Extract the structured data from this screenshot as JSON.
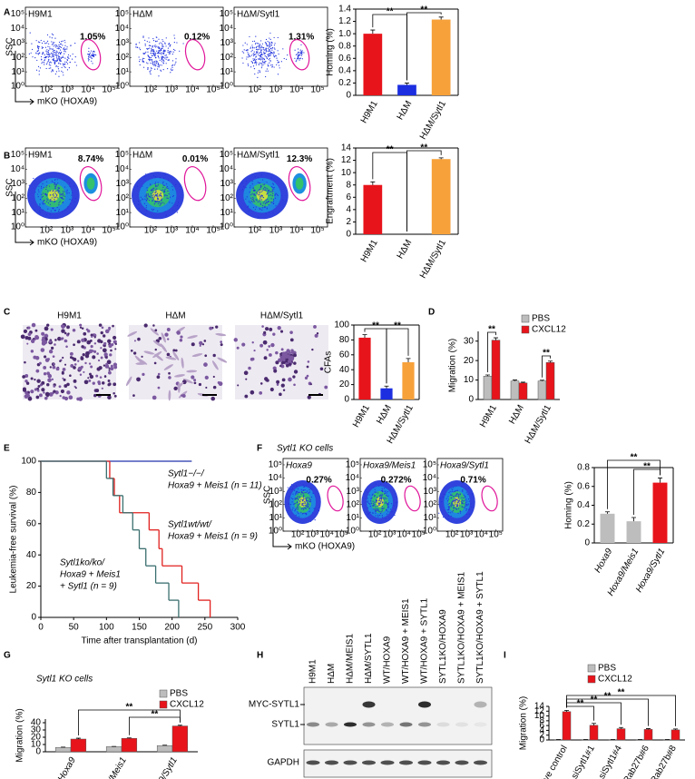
{
  "chart_data": [
    {
      "type": "flow",
      "panel": "A",
      "y_label": "SSC",
      "x_label": "mKO (HOXA9)",
      "samples": [
        "H9M1",
        "HΔM",
        "HΔM/Sytl1"
      ],
      "values": [
        1.05,
        0.12,
        1.31
      ],
      "value_labels": [
        "1.05%",
        "0.12%",
        "1.31%"
      ],
      "log_scale": true,
      "xlim": [
        10,
        300000
      ],
      "xticks": [
        {
          "value": 100,
          "label": "10²"
        },
        {
          "value": 1000,
          "label": "10³"
        },
        {
          "value": 10000,
          "label": "10⁴"
        },
        {
          "value": 100000,
          "label": "10⁵"
        }
      ],
      "ylim": [
        1,
        300000
      ],
      "yticks": [
        {
          "value": 1,
          "label": "10⁰"
        },
        {
          "value": 10,
          "label": "10¹"
        },
        {
          "value": 100,
          "label": "10²"
        },
        {
          "value": 1000,
          "label": "10³"
        },
        {
          "value": 10000,
          "label": "10⁴"
        },
        {
          "value": 100000,
          "label": "10⁵"
        }
      ],
      "color": "#2233dd",
      "gate_color": "#e0159a"
    },
    {
      "type": "bar",
      "y_label": "Homing (%)",
      "categories": [
        "H9M1",
        "HΔM",
        "HΔM/Sytl1"
      ],
      "values": [
        1.0,
        0.17,
        1.23
      ],
      "errors": [
        0.06,
        0.03,
        0.04
      ],
      "colors": [
        "#e8141b",
        "#1c2ee0",
        "#f7a13a"
      ],
      "ylim": [
        0,
        1.4
      ],
      "yticks": [
        0,
        0.2,
        0.4,
        0.6,
        0.8,
        {
          "value": 1,
          "label": "1.0"
        },
        1.2,
        1.4
      ],
      "significance": [
        "**",
        "**"
      ]
    },
    {
      "type": "flow",
      "panel": "B",
      "y_label": "SSC",
      "x_label": "mKO (HOXA9)",
      "samples": [
        "H9M1",
        "HΔM",
        "HΔM/Sytl1"
      ],
      "values": [
        8.74,
        0.01,
        12.3
      ],
      "value_labels": [
        "8.74%",
        "0.01%",
        "12.3%"
      ],
      "log_scale": true,
      "xlim": [
        10,
        300000
      ],
      "xticks": [
        {
          "value": 100,
          "label": "10²"
        },
        {
          "value": 1000,
          "label": "10³"
        },
        {
          "value": 10000,
          "label": "10⁴"
        },
        {
          "value": 100000,
          "label": "10⁵"
        }
      ],
      "ylim": [
        1,
        300000
      ],
      "yticks": [
        {
          "value": 1,
          "label": "10⁰"
        },
        {
          "value": 10,
          "label": "10¹"
        },
        {
          "value": 100,
          "label": "10²"
        },
        {
          "value": 1000,
          "label": "10³"
        },
        {
          "value": 10000,
          "label": "10⁴"
        },
        {
          "value": 100000,
          "label": "10⁵"
        }
      ],
      "color": "#2233dd",
      "gate_color": "#e0159a"
    },
    {
      "type": "bar",
      "y_label": "Engraftment (%)",
      "categories": [
        "H9M1",
        "HΔM",
        "HΔM/Sytl1"
      ],
      "values": [
        8.0,
        0,
        12.2
      ],
      "errors": [
        0.5,
        0,
        0.2
      ],
      "colors": [
        "#e8141b",
        "#ffffff",
        "#f7a13a"
      ],
      "ylim": [
        0,
        14
      ],
      "yticks": [
        0,
        2,
        4,
        6,
        8,
        10,
        12,
        14
      ],
      "significance": [
        "**",
        "**"
      ]
    },
    {
      "type": "image",
      "panel": "C",
      "titles": [
        "H9M1",
        "HΔM",
        "HΔM/Sytl1"
      ]
    },
    {
      "type": "bar",
      "y_label": "CFAs",
      "categories": [
        "H9M1",
        "HΔM",
        "HΔM/Sytl1"
      ],
      "values": [
        83,
        15,
        50
      ],
      "errors": [
        4,
        3,
        5
      ],
      "colors": [
        "#e8141b",
        "#1c2ee0",
        "#f7a13a"
      ],
      "ylim": [
        0,
        100
      ],
      "yticks": [
        0,
        20,
        40,
        60,
        80,
        100
      ],
      "significance": [
        "**",
        "**"
      ]
    },
    {
      "type": "bar",
      "panel": "D",
      "y_label": "Migration (%)",
      "categories": [
        "H9M1",
        "HΔM",
        "HΔM/Sytl1"
      ],
      "series": [
        {
          "name": "PBS",
          "color": "#bdbdbd",
          "values": [
            12,
            9.5,
            9.5
          ],
          "errors": [
            0.6,
            0.5,
            0.4
          ]
        },
        {
          "name": "CXCL12",
          "color": "#e8141b",
          "values": [
            30.5,
            8.5,
            19
          ],
          "errors": [
            1.2,
            0.4,
            0.7
          ]
        }
      ],
      "ylim": [
        0,
        35
      ],
      "yticks": [
        0,
        10,
        20,
        30
      ],
      "significance": [
        "**",
        "**"
      ]
    },
    {
      "type": "survival",
      "panel": "E",
      "x_label": "Time after transplantation (d)",
      "y_label": "Leukemia-free survival (%)",
      "xlim": [
        0,
        300
      ],
      "xticks": [
        0,
        50,
        100,
        150,
        200,
        250,
        300
      ],
      "ylim": [
        0,
        100
      ],
      "yticks": [
        0,
        20,
        40,
        60,
        80,
        100
      ],
      "series": [
        {
          "name": [
            "Sytl1−/−/",
            "Hoxa9 + Meis1 (n = 11)"
          ],
          "color": "#2233aa",
          "x": [
            0,
            230
          ],
          "values": [
            100,
            100
          ]
        },
        {
          "name": [
            "Sytl1wt/wt/",
            "Hoxa9 + Meis1 (n = 9)"
          ],
          "color": "#e0201e",
          "x": [
            0,
            105,
            112,
            120,
            165,
            180,
            185,
            215,
            240,
            258
          ],
          "values": [
            100,
            89,
            78,
            67,
            56,
            44,
            33,
            22,
            11,
            0
          ]
        },
        {
          "name": [
            "Sytl1ko/ko/",
            "Hoxa9 + Meis1",
            "+ Sytl1 (n = 9)"
          ],
          "color": "#3a6e6e",
          "x": [
            0,
            100,
            110,
            125,
            140,
            150,
            160,
            175,
            195,
            210
          ],
          "values": [
            100,
            89,
            78,
            67,
            56,
            44,
            33,
            22,
            11,
            0
          ]
        }
      ]
    },
    {
      "type": "flow",
      "panel": "F",
      "title": "Sytl1 KO cells",
      "y_label": "SSC",
      "x_label": "mKO (HOXA9)",
      "samples": [
        "Hoxa9",
        "Hoxa9/Meis1",
        "Hoxa9/Sytl1"
      ],
      "values": [
        0.27,
        0.272,
        0.71
      ],
      "value_labels": [
        "0.27%",
        "0.272%",
        "0.71%"
      ],
      "log_scale": true,
      "xlim": [
        10,
        300000
      ],
      "xticks": [
        {
          "value": 100,
          "label": "10²"
        },
        {
          "value": 1000,
          "label": "10³"
        },
        {
          "value": 10000,
          "label": "10⁴"
        },
        {
          "value": 100000,
          "label": "10⁵"
        }
      ],
      "ylim": [
        1,
        300000
      ],
      "yticks": [
        {
          "value": 1,
          "label": "10⁰"
        },
        {
          "value": 10,
          "label": "10¹"
        },
        {
          "value": 100,
          "label": "10²"
        },
        {
          "value": 1000,
          "label": "10³"
        },
        {
          "value": 10000,
          "label": "10⁴"
        },
        {
          "value": 100000,
          "label": "10⁵"
        }
      ],
      "color": "#2233dd",
      "gate_color": "#e0159a"
    },
    {
      "type": "bar",
      "y_label": "Homing (%)",
      "categories": [
        "Hoxa9",
        "Hoxa9/Meis1",
        "Hoxa9/Sytl1"
      ],
      "values": [
        0.31,
        0.23,
        0.64
      ],
      "errors": [
        0.02,
        0.04,
        0.05
      ],
      "colors": [
        "#bdbdbd",
        "#bdbdbd",
        "#e8141b"
      ],
      "ylim": [
        0,
        0.8
      ],
      "yticks": [
        0,
        0.2,
        0.4,
        0.6,
        0.8
      ],
      "significance": [
        "**",
        "**"
      ]
    },
    {
      "type": "bar",
      "panel": "G",
      "title": "Sytl1 KO cells",
      "y_label": "Migration (%)",
      "categories": [
        "Hoxa9",
        "Hoxa9/Meis1",
        "Hoxa9/Sytl1"
      ],
      "series": [
        {
          "name": "PBS",
          "color": "#bdbdbd",
          "values": [
            6,
            7,
            8.5
          ],
          "errors": [
            0.3,
            0.3,
            0.5
          ]
        },
        {
          "name": "CXCL12",
          "color": "#e8141b",
          "values": [
            17.5,
            18.5,
            35.5
          ],
          "errors": [
            1.2,
            0.6,
            1.0
          ]
        }
      ],
      "ylim": [
        0,
        45
      ],
      "yticks": [
        0,
        10,
        20,
        30,
        40
      ],
      "significance": [
        "**",
        "**"
      ]
    },
    {
      "type": "blot",
      "panel": "H",
      "lanes": [
        "H9M1",
        "HΔM",
        "HΔM/MEIS1",
        "HΔM/SYTL1",
        "WT/HOXA9",
        "WT/HOXA9 + MEIS1",
        "WT/HOXA9 + SYTL1",
        "SYTL1KO/HOXA9",
        "SYTL1KO/HOXA9 + MEIS1",
        "SYTL1KO/HOXA9 + SYTL1"
      ],
      "bands": [
        "MYC-SYTL1",
        "SYTL1"
      ],
      "loading_control": "GAPDH"
    },
    {
      "type": "bar",
      "panel": "I",
      "y_label": "Migration (%)",
      "categories": [
        "Negative control",
        "siSytl1#1",
        "siSytl1#4",
        "siRab27b#6",
        "siRab27b#8"
      ],
      "series": [
        {
          "name": "PBS",
          "color": "#bdbdbd",
          "values": [
            0.15,
            0.15,
            0.15,
            0.15,
            0.15
          ],
          "errors": [
            0.05,
            0.05,
            0.05,
            0.05,
            0.05
          ]
        },
        {
          "name": "CXCL12",
          "color": "#e8141b",
          "values": [
            11.8,
            6.1,
            4.7,
            4.4,
            4.2
          ],
          "errors": [
            0.5,
            0.8,
            0.5,
            0.3,
            0.4
          ]
        }
      ],
      "ylim": [
        0,
        14
      ],
      "yticks": [
        0,
        2,
        4,
        6,
        8,
        10,
        12,
        14
      ],
      "significance": [
        "**",
        "**",
        "**",
        "**"
      ]
    }
  ]
}
